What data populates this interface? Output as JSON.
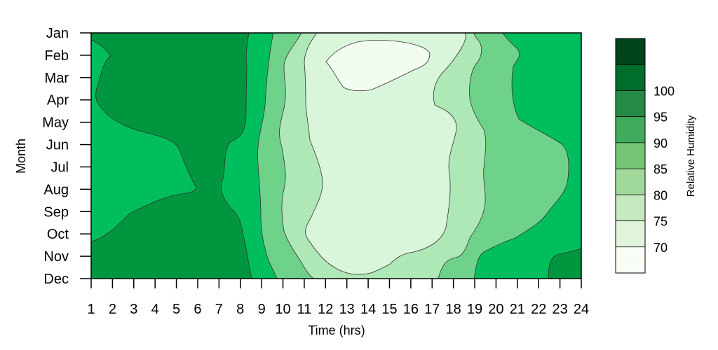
{
  "chart_data": {
    "type": "heatmap",
    "subtype": "filled-contour",
    "xlabel": "Time (hrs)",
    "ylabel": "Month",
    "colorbar_label": "Relative Humidity",
    "x_ticks": [
      "1",
      "2",
      "3",
      "4",
      "5",
      "6",
      "7",
      "8",
      "9",
      "10",
      "11",
      "12",
      "13",
      "14",
      "15",
      "16",
      "17",
      "18",
      "19",
      "20",
      "21",
      "22",
      "23",
      "24"
    ],
    "y_categories": [
      "Jan",
      "Feb",
      "Mar",
      "Apr",
      "May",
      "Jun",
      "Jul",
      "Aug",
      "Sep",
      "Oct",
      "Nov",
      "Dec"
    ],
    "xlim": [
      1,
      24
    ],
    "levels": [
      65,
      70,
      75,
      80,
      85,
      90,
      95,
      100,
      105
    ],
    "level_labels": [
      "70",
      "75",
      "80",
      "85",
      "90",
      "95",
      "100"
    ],
    "colors": [
      "#f7fcf5",
      "#e0f3db",
      "#c7e9c0",
      "#a1d99b",
      "#74c476",
      "#41ab5d",
      "#238b45",
      "#006d2c",
      "#00441b"
    ],
    "fill_colors": {
      "above_95": "#00963f",
      "band_90_95": "#00be5e",
      "band_85_90": "#6fd28b",
      "band_80_85": "#aee8b6",
      "band_75_80": "#d9f5da",
      "below_75": "#f3fcf1"
    },
    "contours": [
      {
        "level_range": "90-95",
        "value": 90,
        "region": "left",
        "boundary_x_by_month": [
          {
            "month": "Jan",
            "x": 8.55
          },
          {
            "month": "Feb",
            "x": 8.3
          },
          {
            "month": "Mar",
            "x": 8.25
          },
          {
            "month": "Apr",
            "x": 8.25
          },
          {
            "month": "May",
            "x": 8.2
          },
          {
            "month": "Jun",
            "x": 7.7
          },
          {
            "month": "Jul",
            "x": 7.3
          },
          {
            "month": "Aug",
            "x": 7.0
          },
          {
            "month": "Sep",
            "x": 7.6
          },
          {
            "month": "Oct",
            "x": 8.1
          },
          {
            "month": "Nov",
            "x": 8.3
          },
          {
            "month": "Dec",
            "x": 8.5
          }
        ]
      },
      {
        "level_range": "85-90",
        "value": 85,
        "region": "left",
        "boundary_x_by_month": [
          {
            "month": "Jan",
            "x": 9.0
          },
          {
            "month": "Feb",
            "x": 9.0
          },
          {
            "month": "Mar",
            "x": 9.1
          },
          {
            "month": "Apr",
            "x": 9.0
          },
          {
            "month": "May",
            "x": 8.8
          },
          {
            "month": "Jun",
            "x": 8.7
          },
          {
            "month": "Jul",
            "x": 8.9
          },
          {
            "month": "Aug",
            "x": 9.1
          },
          {
            "month": "Sep",
            "x": 9.1
          },
          {
            "month": "Oct",
            "x": 9.2
          },
          {
            "month": "Nov",
            "x": 9.4
          },
          {
            "month": "Dec",
            "x": 9.6
          }
        ]
      },
      {
        "level_range": "80-85",
        "value": 80,
        "region": "left",
        "boundary_x_by_month": [
          {
            "month": "Jan",
            "x": 10.8
          },
          {
            "month": "Feb",
            "x": 10.3
          },
          {
            "month": "Mar",
            "x": 10.1
          },
          {
            "month": "Apr",
            "x": 10.0
          },
          {
            "month": "May",
            "x": 10.0
          },
          {
            "month": "Jun",
            "x": 10.0
          },
          {
            "month": "Jul",
            "x": 10.1
          },
          {
            "month": "Aug",
            "x": 10.1
          },
          {
            "month": "Sep",
            "x": 10.1
          },
          {
            "month": "Oct",
            "x": 10.2
          },
          {
            "month": "Nov",
            "x": 10.6
          },
          {
            "month": "Dec",
            "x": 11.0
          }
        ]
      },
      {
        "level_range": "75-80",
        "value": 75,
        "region": "center",
        "boundary_x_by_month": [
          {
            "month": "Jan",
            "x": 11.5
          },
          {
            "month": "Feb",
            "x": 11.2
          },
          {
            "month": "Mar",
            "x": 11.1
          },
          {
            "month": "Apr",
            "x": 11.1
          },
          {
            "month": "May",
            "x": 11.3
          },
          {
            "month": "Jun",
            "x": 11.4
          },
          {
            "month": "Jul",
            "x": 11.6
          },
          {
            "month": "Aug",
            "x": 11.8
          },
          {
            "month": "Sep",
            "x": 11.5
          },
          {
            "month": "Oct",
            "x": 11.3
          },
          {
            "month": "Nov",
            "x": 12.0
          },
          {
            "month": "Dec",
            "x": 13.5
          }
        ]
      },
      {
        "level_range": "65-70",
        "value": 70,
        "region": "center-top",
        "boundary": "closed region 12-17 hrs, Feb-Mar"
      },
      {
        "level_range": "90-95",
        "value": 90,
        "region": "right",
        "boundary": "bottom-right, 22.3-24 hrs, Nov-Dec"
      }
    ]
  }
}
